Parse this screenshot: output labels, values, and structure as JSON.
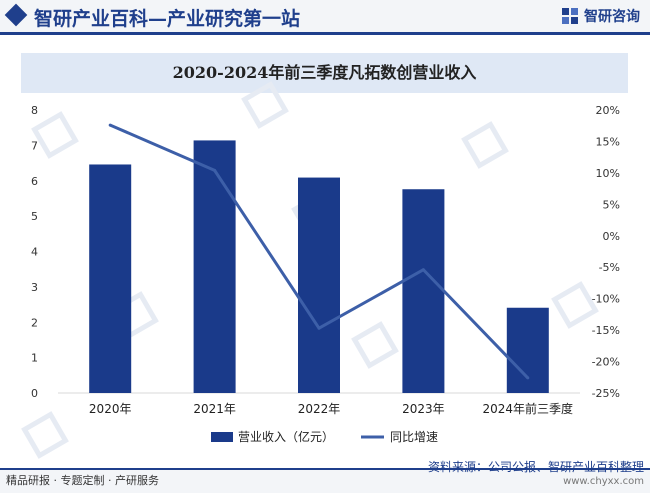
{
  "header": {
    "title": "智研产业百科—产业研究第一站",
    "brand_name": "智研咨询"
  },
  "chart_data": {
    "type": "bar",
    "title": "2020-2024年前三季度凡拓数创营业收入",
    "categories": [
      "2020年",
      "2021年",
      "2022年",
      "2023年",
      "2024年前三季度"
    ],
    "series": [
      {
        "name": "营业收入（亿元）",
        "type": "bar",
        "axis": "left",
        "values": [
          6.46,
          7.14,
          6.09,
          5.76,
          2.41
        ]
      },
      {
        "name": "同比增速",
        "type": "line",
        "axis": "right",
        "values": [
          17.6,
          10.4,
          -14.7,
          -5.4,
          -22.6
        ]
      }
    ],
    "y_left": {
      "min": 0,
      "max": 8,
      "ticks": [
        0,
        1,
        2,
        3,
        4,
        5,
        6,
        7,
        8
      ]
    },
    "y_right": {
      "min": -25,
      "max": 20,
      "ticks": [
        -25,
        -20,
        -15,
        -10,
        -5,
        0,
        5,
        10,
        15,
        20
      ],
      "tick_labels": [
        "-25%",
        "-20%",
        "-15%",
        "-10%",
        "-5%",
        "0%",
        "5%",
        "10%",
        "15%",
        "20%"
      ]
    },
    "grid": false,
    "legend_position": "bottom",
    "colors": {
      "bar": "#1a3a8a",
      "line": "#3d5fa8"
    }
  },
  "footer": {
    "left_text": "精品研报 · 专题定制 · 产研服务",
    "source": "资料来源：公司公报、智研产业百科整理",
    "url": "www.chyxx.com"
  }
}
